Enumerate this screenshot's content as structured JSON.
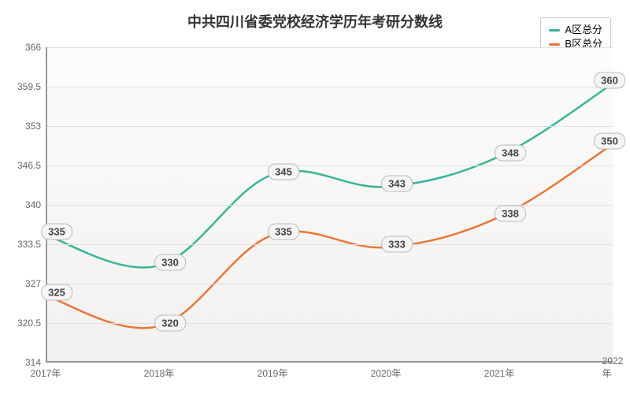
{
  "chart": {
    "type": "line",
    "title": "中共四川省委党校经济学历年考研分数线",
    "title_fontsize": 18,
    "background_color": "#ffffff",
    "plot_background_gradient": [
      "#fcfcfa",
      "#f2f1ef"
    ],
    "grid_color": "#e0e0e0",
    "axis_color": "#999999",
    "label_bg": "#f5f5f5",
    "label_border": "#bbbbbb",
    "label_text_color": "#444444",
    "categories": [
      "2017年",
      "2018年",
      "2019年",
      "2020年",
      "2021年",
      "2022年"
    ],
    "ylim": [
      314,
      366
    ],
    "ytick_step": 6.5,
    "yticks": [
      314,
      320.5,
      327,
      333.5,
      340,
      346.5,
      353,
      359.5,
      366
    ],
    "series": [
      {
        "name": "A区总分",
        "color": "#39b39a",
        "line_width": 2.5,
        "smooth": true,
        "values": [
          335,
          330,
          345,
          343,
          348,
          360
        ]
      },
      {
        "name": "B区总分",
        "color": "#e87538",
        "line_width": 2.5,
        "smooth": true,
        "values": [
          325,
          320,
          335,
          333,
          338,
          350
        ]
      }
    ],
    "legend_position": "top-right",
    "x_axis_fontsize": 12,
    "y_axis_fontsize": 12,
    "data_label_fontsize": 13
  }
}
